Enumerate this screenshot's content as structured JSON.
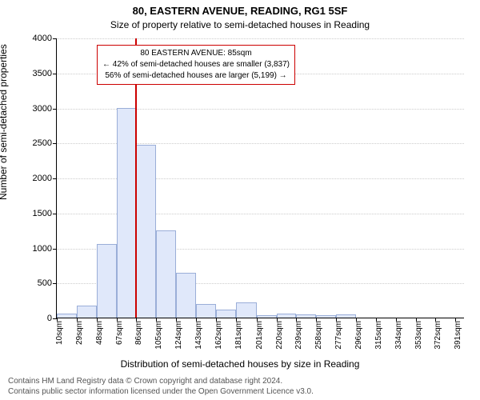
{
  "title": "80, EASTERN AVENUE, READING, RG1 5SF",
  "subtitle": "Size of property relative to semi-detached houses in Reading",
  "ylabel": "Number of semi-detached properties",
  "xlabel": "Distribution of semi-detached houses by size in Reading",
  "footnote_line1": "Contains HM Land Registry data © Crown copyright and database right 2024.",
  "footnote_line2": "Contains public sector information licensed under the Open Government Licence v3.0.",
  "chart": {
    "type": "histogram",
    "ylim": [
      0,
      4000
    ],
    "ytick_step": 500,
    "xlim": [
      10,
      400
    ],
    "bar_fill": "#e0e8fa",
    "bar_border": "#9aaed8",
    "grid_color": "#cccccc",
    "background_color": "#ffffff",
    "title_fontsize": 13,
    "label_fontsize": 12,
    "tick_fontsize": 10,
    "xticks": [
      10,
      29,
      48,
      67,
      86,
      105,
      124,
      143,
      162,
      181,
      201,
      220,
      239,
      258,
      277,
      296,
      315,
      334,
      353,
      372,
      391
    ],
    "xtick_unit": "sqm",
    "bars": [
      {
        "x0": 10,
        "x1": 29,
        "value": 60
      },
      {
        "x0": 29,
        "x1": 48,
        "value": 170
      },
      {
        "x0": 48,
        "x1": 67,
        "value": 1050
      },
      {
        "x0": 67,
        "x1": 86,
        "value": 3000
      },
      {
        "x0": 86,
        "x1": 105,
        "value": 2470
      },
      {
        "x0": 105,
        "x1": 124,
        "value": 1250
      },
      {
        "x0": 124,
        "x1": 143,
        "value": 640
      },
      {
        "x0": 143,
        "x1": 162,
        "value": 190
      },
      {
        "x0": 162,
        "x1": 181,
        "value": 110
      },
      {
        "x0": 181,
        "x1": 201,
        "value": 220
      },
      {
        "x0": 201,
        "x1": 220,
        "value": 40
      },
      {
        "x0": 220,
        "x1": 239,
        "value": 60
      },
      {
        "x0": 239,
        "x1": 258,
        "value": 50
      },
      {
        "x0": 258,
        "x1": 277,
        "value": 30
      },
      {
        "x0": 277,
        "x1": 296,
        "value": 50
      }
    ],
    "marker": {
      "x": 85,
      "color": "#cc0000",
      "callout_lines": [
        "80 EASTERN AVENUE: 85sqm",
        "← 42% of semi-detached houses are smaller (3,837)",
        "56% of semi-detached houses are larger (5,199) →"
      ]
    }
  }
}
